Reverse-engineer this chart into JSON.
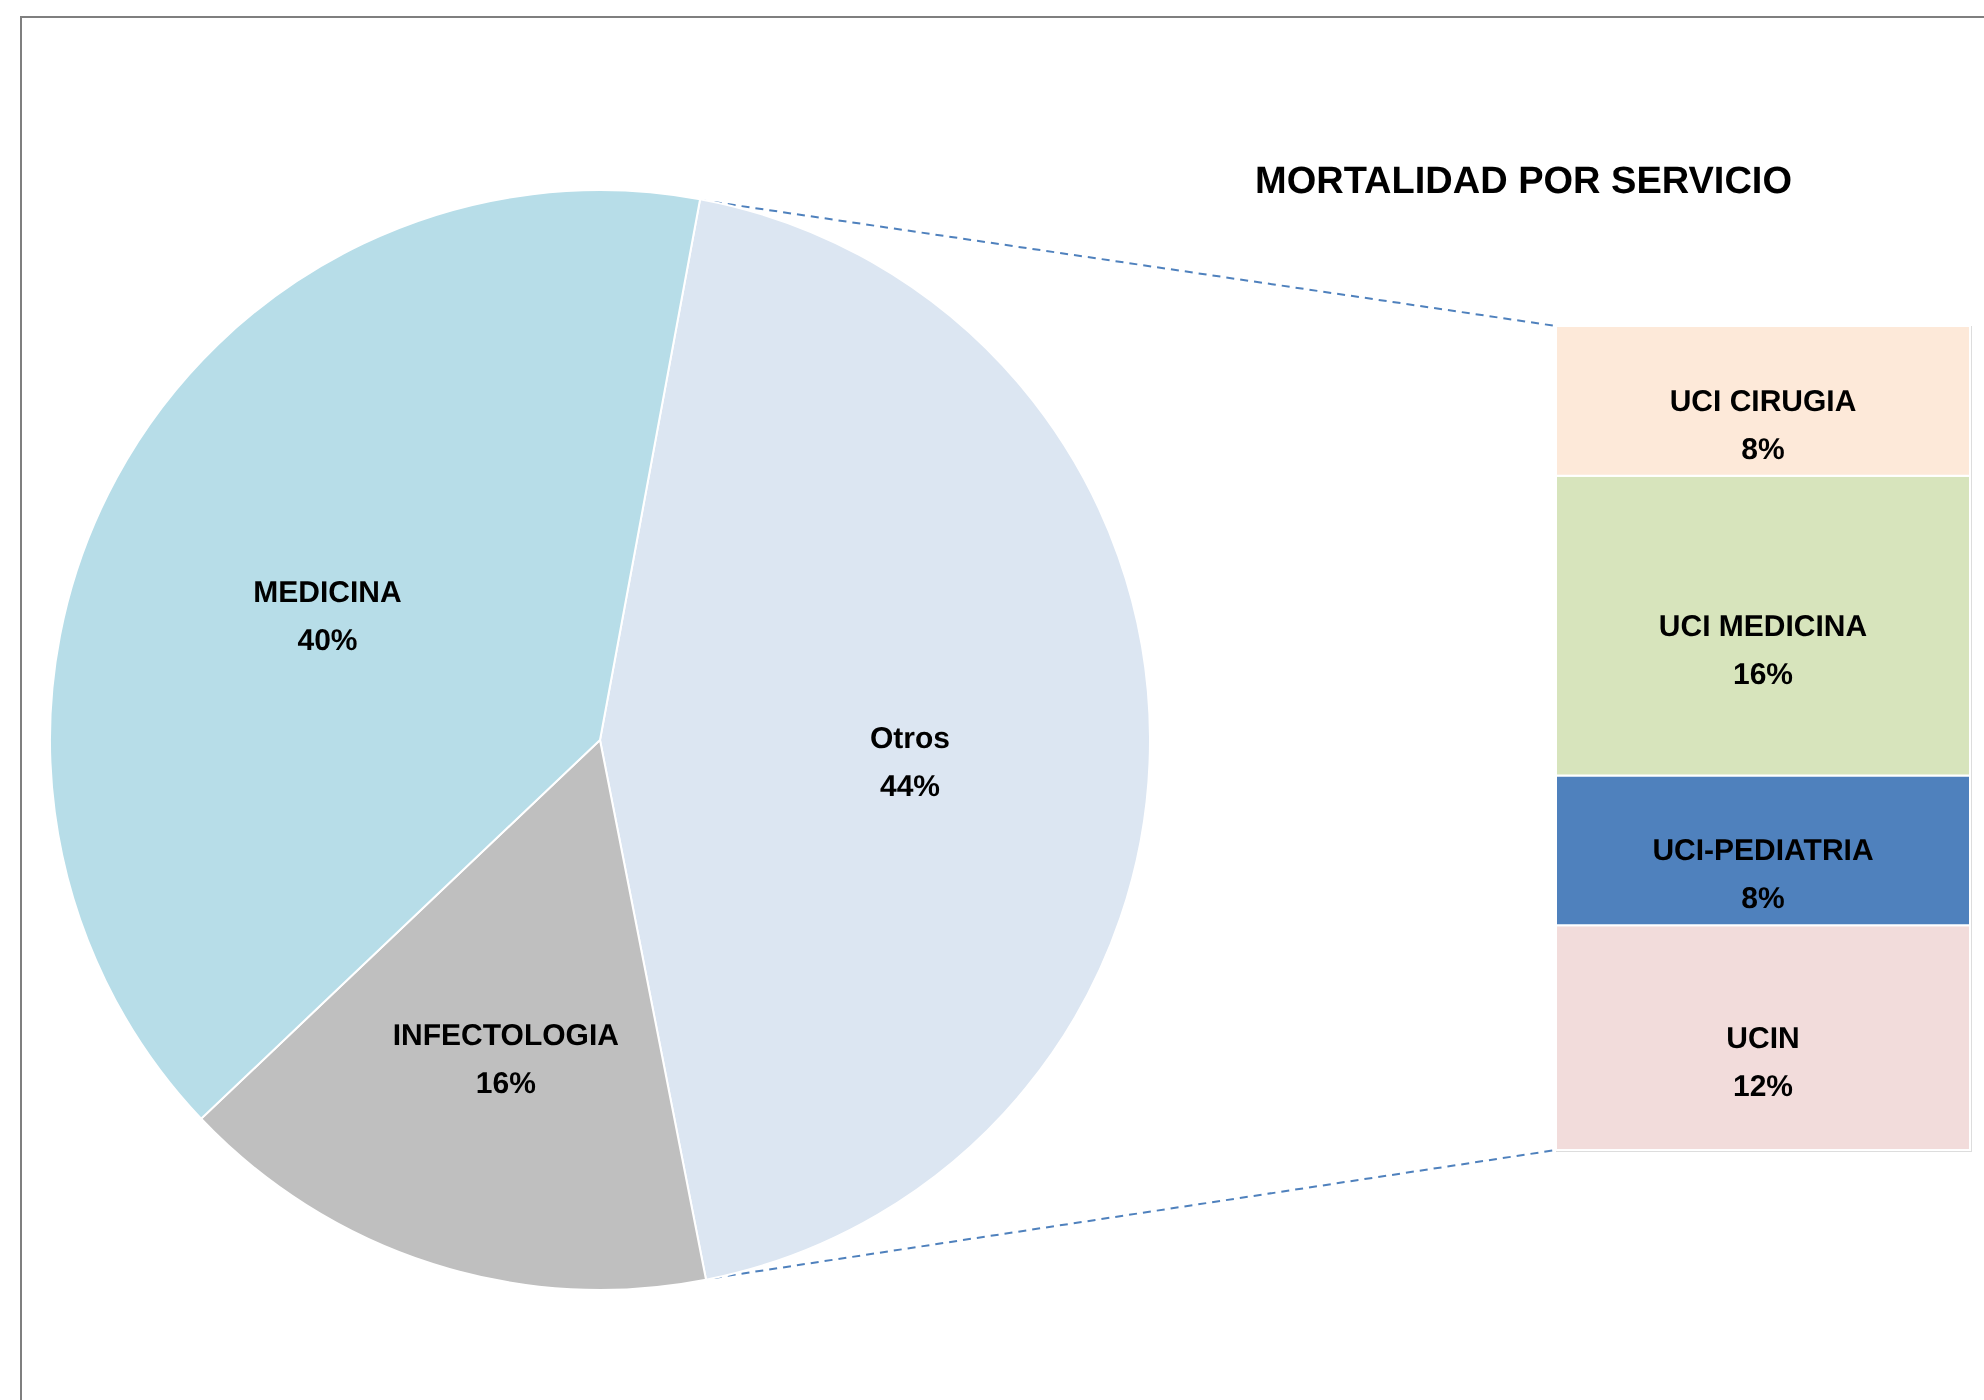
{
  "chart_data": [
    {
      "type": "pie",
      "categories": [
        "Otros",
        "INFECTOLOGIA",
        "MEDICINA"
      ],
      "values": [
        44,
        16,
        40
      ],
      "colors": [
        "#dce6f2",
        "#bfbfbf",
        "#b7dde8"
      ],
      "value_labels": [
        "44%",
        "16%",
        "40%"
      ]
    },
    {
      "type": "bar",
      "title": "MORTALIDAD POR SERVICIO",
      "stacked": true,
      "categories": [
        null
      ],
      "series": [
        {
          "name": "UCIN",
          "color": "#f2dcdb",
          "values": [
            12
          ],
          "value_labels": [
            "12%"
          ]
        },
        {
          "name": "UCI-PEDIATRIA",
          "color": "#4f81bd",
          "values": [
            8
          ],
          "value_labels": [
            "8%"
          ]
        },
        {
          "name": "UCI MEDICINA",
          "color": "#d7e4bc",
          "values": [
            16
          ],
          "value_labels": [
            "16%"
          ]
        },
        {
          "name": "UCI CIRUGIA",
          "color": "#fde9d9",
          "values": [
            8
          ],
          "value_labels": [
            "8%"
          ]
        }
      ]
    }
  ]
}
